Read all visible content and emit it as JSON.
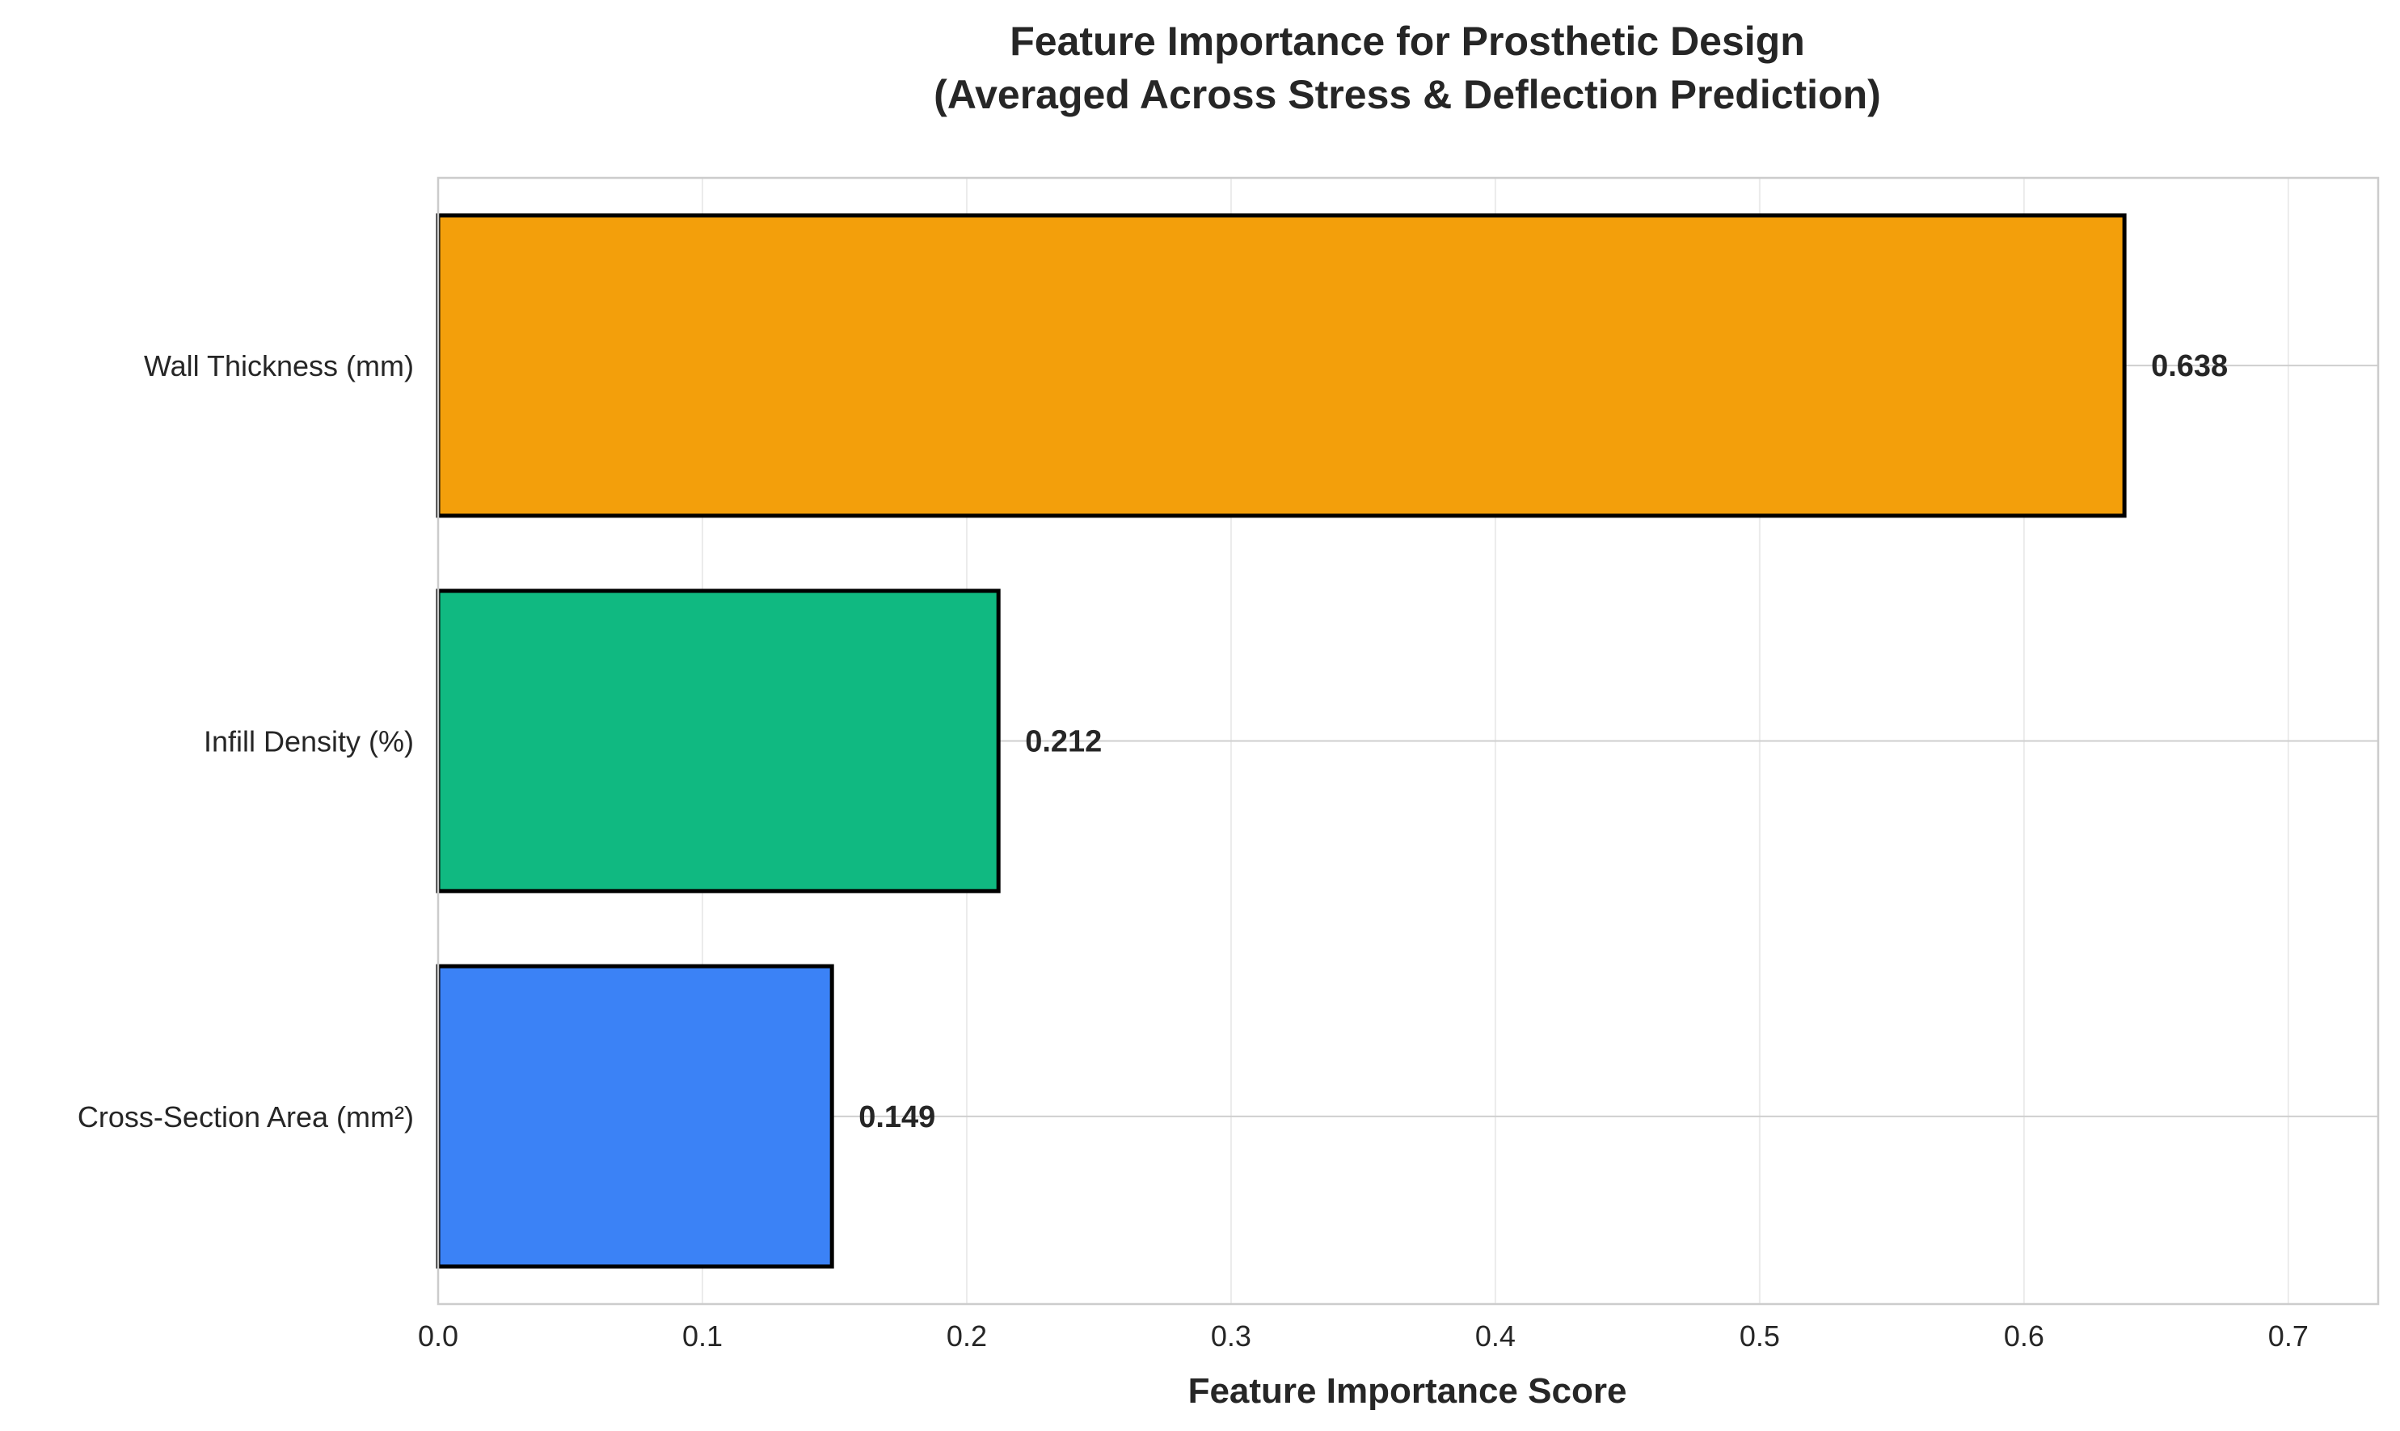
{
  "chart_data": {
    "type": "bar",
    "orientation": "horizontal",
    "title": [
      "Feature Importance for Prosthetic Design",
      "(Averaged Across Stress & Deflection Prediction)"
    ],
    "xlabel": "Feature Importance Score",
    "ylabel": "",
    "categories": [
      "Wall Thickness (mm)",
      "Infill Density (%)",
      "Cross-Section Area (mm²)"
    ],
    "values": [
      0.638,
      0.212,
      0.149
    ],
    "value_labels": [
      "0.638",
      "0.212",
      "0.149"
    ],
    "colors": [
      "#f39f0b",
      "#10b981",
      "#3b82f6"
    ],
    "edge_color": "#000000",
    "xlim": [
      0,
      0.734
    ],
    "xticks": [
      0.0,
      0.1,
      0.2,
      0.3,
      0.4,
      0.5,
      0.6,
      0.7
    ],
    "xtick_labels": [
      "0.0",
      "0.1",
      "0.2",
      "0.3",
      "0.4",
      "0.5",
      "0.6",
      "0.7"
    ],
    "grid": true,
    "legend": "none"
  }
}
